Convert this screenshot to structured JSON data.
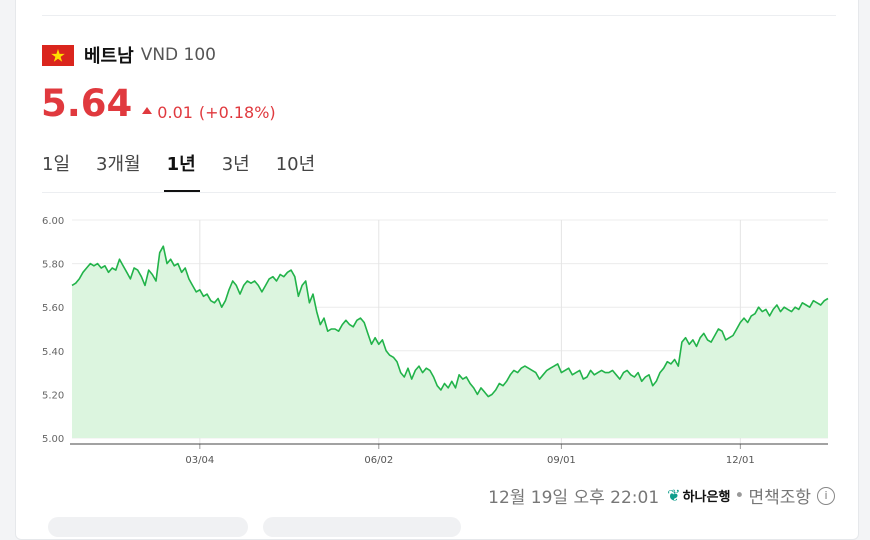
{
  "header": {
    "country": "베트남",
    "symbol": "VND 100"
  },
  "quote": {
    "price": "5.64",
    "change": "0.01",
    "change_pct": "(+0.18%)",
    "accent": "#e0393e"
  },
  "tabs": [
    {
      "label": "1일",
      "active": false
    },
    {
      "label": "3개월",
      "active": false
    },
    {
      "label": "1년",
      "active": true
    },
    {
      "label": "3년",
      "active": false
    },
    {
      "label": "10년",
      "active": false
    }
  ],
  "footer": {
    "timestamp": "12월 19일 오후 22:01",
    "bank": "하나은행",
    "separator": "•",
    "disclaimer": "면책조항",
    "info_icon": "i"
  },
  "icons": {
    "flag": "vietnam-flag-icon",
    "change": "triangle-up-icon",
    "info": "info-icon"
  },
  "chart_data": {
    "type": "area",
    "title": "",
    "xlabel": "",
    "ylabel": "",
    "ylim": [
      5.0,
      6.0
    ],
    "yticks": [
      "6.00",
      "5.80",
      "5.60",
      "5.40",
      "5.20",
      "5.00"
    ],
    "xticks": [
      {
        "label": "03/04",
        "index": 35
      },
      {
        "label": "06/02",
        "index": 84
      },
      {
        "label": "09/01",
        "index": 134
      },
      {
        "label": "12/01",
        "index": 183
      }
    ],
    "line_color": "#22b34a",
    "fill_color": "#dcf5df",
    "grid": true,
    "series": [
      {
        "values": [
          5.7,
          5.71,
          5.73,
          5.76,
          5.78,
          5.8,
          5.79,
          5.8,
          5.78,
          5.79,
          5.76,
          5.78,
          5.77,
          5.82,
          5.79,
          5.76,
          5.73,
          5.78,
          5.77,
          5.74,
          5.7,
          5.77,
          5.75,
          5.72,
          5.85,
          5.88,
          5.8,
          5.82,
          5.79,
          5.8,
          5.76,
          5.78,
          5.73,
          5.7,
          5.67,
          5.68,
          5.65,
          5.66,
          5.63,
          5.62,
          5.64,
          5.6,
          5.63,
          5.68,
          5.72,
          5.7,
          5.66,
          5.7,
          5.72,
          5.71,
          5.72,
          5.7,
          5.67,
          5.7,
          5.73,
          5.74,
          5.72,
          5.75,
          5.74,
          5.76,
          5.77,
          5.74,
          5.65,
          5.7,
          5.72,
          5.62,
          5.66,
          5.58,
          5.52,
          5.55,
          5.49,
          5.5,
          5.5,
          5.49,
          5.52,
          5.54,
          5.52,
          5.51,
          5.54,
          5.55,
          5.53,
          5.48,
          5.43,
          5.46,
          5.43,
          5.45,
          5.4,
          5.38,
          5.37,
          5.35,
          5.3,
          5.28,
          5.32,
          5.27,
          5.31,
          5.33,
          5.3,
          5.32,
          5.31,
          5.28,
          5.24,
          5.22,
          5.25,
          5.23,
          5.26,
          5.23,
          5.29,
          5.27,
          5.28,
          5.25,
          5.23,
          5.2,
          5.23,
          5.21,
          5.19,
          5.2,
          5.22,
          5.25,
          5.24,
          5.26,
          5.29,
          5.31,
          5.3,
          5.32,
          5.33,
          5.32,
          5.31,
          5.3,
          5.27,
          5.29,
          5.31,
          5.32,
          5.33,
          5.34,
          5.3,
          5.31,
          5.32,
          5.29,
          5.3,
          5.31,
          5.27,
          5.28,
          5.31,
          5.29,
          5.3,
          5.31,
          5.3,
          5.3,
          5.31,
          5.29,
          5.27,
          5.3,
          5.31,
          5.29,
          5.28,
          5.3,
          5.26,
          5.28,
          5.29,
          5.24,
          5.26,
          5.3,
          5.32,
          5.35,
          5.34,
          5.36,
          5.33,
          5.44,
          5.46,
          5.43,
          5.45,
          5.42,
          5.46,
          5.48,
          5.45,
          5.44,
          5.47,
          5.5,
          5.49,
          5.45,
          5.46,
          5.47,
          5.5,
          5.53,
          5.55,
          5.53,
          5.56,
          5.57,
          5.6,
          5.58,
          5.59,
          5.56,
          5.59,
          5.61,
          5.58,
          5.6,
          5.59,
          5.58,
          5.6,
          5.59,
          5.62,
          5.61,
          5.6,
          5.63,
          5.62,
          5.61,
          5.63,
          5.64
        ]
      }
    ]
  }
}
